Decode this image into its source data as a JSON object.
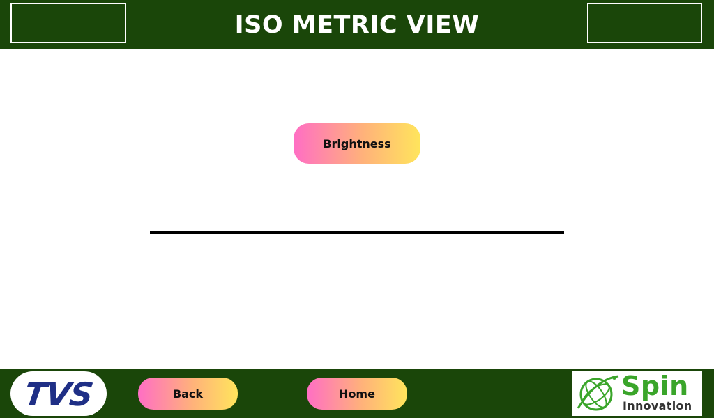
{
  "header": {
    "title": "ISO METRIC VIEW"
  },
  "main": {
    "brightness_label": "Brightness"
  },
  "footer": {
    "tvs_logo_text": "TVS",
    "back_label": "Back",
    "home_label": "Home",
    "spin_logo": {
      "line1": "Spin",
      "line2": "Innovation"
    }
  },
  "colors": {
    "bar_green": "#1a4609",
    "button_gradient_start": "#ff6ec4",
    "button_gradient_end": "#ffe55c",
    "tvs_blue": "#1f2f86",
    "spin_green": "#3aa52a"
  },
  "icons": {
    "spin_logo_icon": "globe-orbit-icon"
  }
}
